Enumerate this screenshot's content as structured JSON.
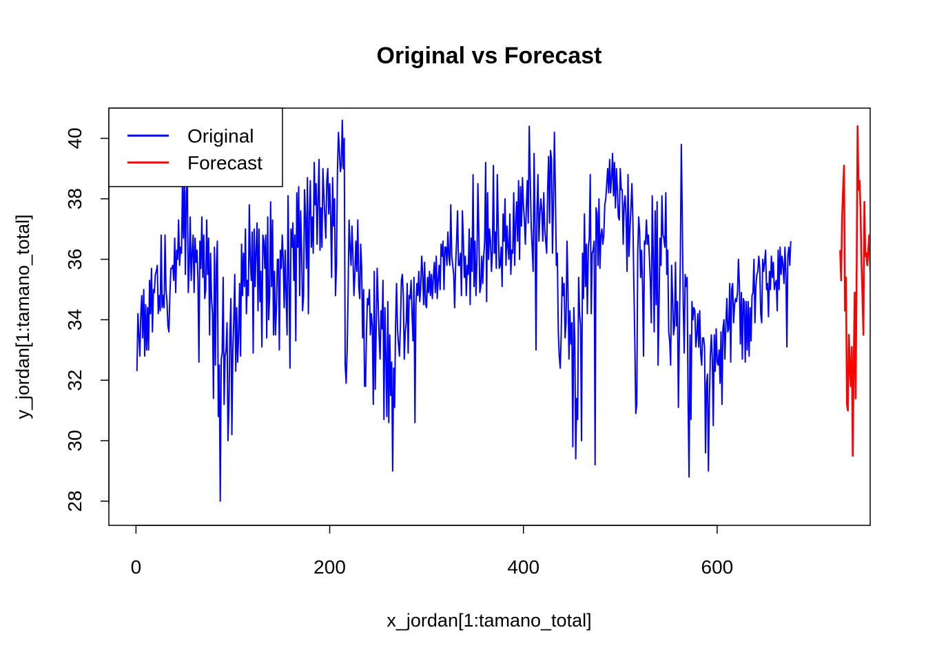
{
  "chart_data": {
    "type": "line",
    "title": "Original vs Forecast",
    "xlabel": "x_jordan[1:tamano_total]",
    "ylabel": "y_jordan[1:tamano_total]",
    "xlim": [
      -28,
      758
    ],
    "ylim": [
      27.2,
      41.0
    ],
    "x_ticks": [
      0,
      200,
      400,
      600
    ],
    "y_ticks": [
      28,
      30,
      32,
      34,
      36,
      38,
      40
    ],
    "x_tick_labels": [
      "0",
      "200",
      "400",
      "600"
    ],
    "y_tick_labels": [
      "28",
      "30",
      "32",
      "34",
      "36",
      "38",
      "40"
    ],
    "grid": false,
    "legend_position": "top-left",
    "series": [
      {
        "name": "Original",
        "color": "#0000ff",
        "x_start": 1,
        "values": [
          32.3,
          34.2,
          33.5,
          32.8,
          34.2,
          34.8,
          33.4,
          35.0,
          32.8,
          34.5,
          33.0,
          34.4,
          33.0,
          35.3,
          34.2,
          35.7,
          33.6,
          35.0,
          34.9,
          35.5,
          35.6,
          35.8,
          34.2,
          34.8,
          34.3,
          36.8,
          34.4,
          34.8,
          34.4,
          36.8,
          35.0,
          34.6,
          33.8,
          33.6,
          34.8,
          35.7,
          35.7,
          35.8,
          35.3,
          36.7,
          34.9,
          36.3,
          36.0,
          37.3,
          35.8,
          36.4,
          36.2,
          38.5,
          36.7,
          39.0,
          35.5,
          38.2,
          38.6,
          34.9,
          35.8,
          37.4,
          35.3,
          36.2,
          36.8,
          34.9,
          36.7,
          35.9,
          36.3,
          35.3,
          32.6,
          36.6,
          35.7,
          37.4,
          35.4,
          36.8,
          34.7,
          35.0,
          37.3,
          35.5,
          36.7,
          33.5,
          36.2,
          34.7,
          34.2,
          31.4,
          36.4,
          32.5,
          35.8,
          36.6,
          30.8,
          32.5,
          28.0,
          32.7,
          32.9,
          35.4,
          31.2,
          32.8,
          33.0,
          33.9,
          30.0,
          31.2,
          33.6,
          34.7,
          30.2,
          33.0,
          34.0,
          35.5,
          32.3,
          34.4,
          32.6,
          33.5,
          35.2,
          32.8,
          36.5,
          34.8,
          36.2,
          35.1,
          37.0,
          34.2,
          35.3,
          34.8,
          37.8,
          36.0,
          35.3,
          36.9,
          32.9,
          37.0,
          35.1,
          36.3,
          37.2,
          34.3,
          37.0,
          34.6,
          35.6,
          33.1,
          36.8,
          36.6,
          35.7,
          36.8,
          33.4,
          37.4,
          34.0,
          34.8,
          37.9,
          35.1,
          37.3,
          33.5,
          35.6,
          33.5,
          34.4,
          36.0,
          36.0,
          33.0,
          36.3,
          35.7,
          36.8,
          36.0,
          34.4,
          36.3,
          34.8,
          33.5,
          38.1,
          35.3,
          32.4,
          37.0,
          36.4,
          37.2,
          35.3,
          36.8,
          33.3,
          38.2,
          36.4,
          38.4,
          34.8,
          37.6,
          36.3,
          34.3,
          34.8,
          38.3,
          37.4,
          35.7,
          38.7,
          34.2,
          37.5,
          38.6,
          36.4,
          37.4,
          36.2,
          39.2,
          37.8,
          38.5,
          36.5,
          38.0,
          39.3,
          36.3,
          37.7,
          36.4,
          39.0,
          38.1,
          37.4,
          36.7,
          38.6,
          39.0,
          37.5,
          38.5,
          37.4,
          35.4,
          38.7,
          37.1,
          38.0,
          34.8,
          35.8,
          38.9,
          40.2,
          39.6,
          38.9,
          39.1,
          40.6,
          39.0,
          40.0,
          32.5,
          31.9,
          33.0,
          34.9,
          37.3,
          36.4,
          35.8,
          37.1,
          36.1,
          34.8,
          35.5,
          36.6,
          35.6,
          37.3,
          35.1,
          34.7,
          36.5,
          35.7,
          33.4,
          35.0,
          31.8,
          31.8,
          33.6,
          34.7,
          34.5,
          35.0,
          33.5,
          34.2,
          33.8,
          31.2,
          35.6,
          31.7,
          33.7,
          35.7,
          34.6,
          33.5,
          32.7,
          34.3,
          33.7,
          35.3,
          30.7,
          34.4,
          32.8,
          30.8,
          34.6,
          30.6,
          33.5,
          31.5,
          32.6,
          29.0,
          32.4,
          31.1,
          33.8,
          35.2,
          33.7,
          33.2,
          32.8,
          33.8,
          35.3,
          35.5,
          34.8,
          32.7,
          33.6,
          33.9,
          35.2,
          32.9,
          34.8,
          34.7,
          35.3,
          34.2,
          33.3,
          35.4,
          30.6,
          34.5,
          35.2,
          34.8,
          35.6,
          34.6,
          35.1,
          36.1,
          35.5,
          34.5,
          35.9,
          34.5,
          34.4,
          35.4,
          34.9,
          35.6,
          34.8,
          35.5,
          34.7,
          35.4,
          35.9,
          34.9,
          36.1,
          34.7,
          35.3,
          35.8,
          35.0,
          36.5,
          36.1,
          36.6,
          35.0,
          36.4,
          36.4,
          35.8,
          36.9,
          36.1,
          35.8,
          37.8,
          36.1,
          35.8,
          35.5,
          34.4,
          35.8,
          36.6,
          37.6,
          35.8,
          35.8,
          36.2,
          34.8,
          37.6,
          36.6,
          35.4,
          36.1,
          34.8,
          35.8,
          35.5,
          37.0,
          34.5,
          36.7,
          35.6,
          38.8,
          35.1,
          36.6,
          34.8,
          36.0,
          38.5,
          36.8,
          34.9,
          35.1,
          36.1,
          35.2,
          36.1,
          36.6,
          39.2,
          34.6,
          38.2,
          36.0,
          37.0,
          36.6,
          35.6,
          36.3,
          39.1,
          36.2,
          36.9,
          35.7,
          38.8,
          37.2,
          35.7,
          35.8,
          36.4,
          35.1,
          37.5,
          36.6,
          38.0,
          35.8,
          37.1,
          36.4,
          36.0,
          37.5,
          35.5,
          36.3,
          36.2,
          38.2,
          35.8,
          37.2,
          37.9,
          36.6,
          38.6,
          36.0,
          38.4,
          37.1,
          38.7,
          37.8,
          37.3,
          36.5,
          37.7,
          38.6,
          37.2,
          40.4,
          38.7,
          37.1,
          36.4,
          35.6,
          39.5,
          37.1,
          33.0,
          37.6,
          38.8,
          36.6,
          37.5,
          38.0,
          37.6,
          36.6,
          38.2,
          37.0,
          36.6,
          36.2,
          38.3,
          39.4,
          37.2,
          39.6,
          39.3,
          36.2,
          37.9,
          40.2,
          38.2,
          35.8,
          36.2,
          33.6,
          32.8,
          32.4,
          33.5,
          35.4,
          34.8,
          35.2,
          33.4,
          33.9,
          36.6,
          35.0,
          32.7,
          34.3,
          33.2,
          33.9,
          29.8,
          34.4,
          33.4,
          29.4,
          31.4,
          30.7,
          35.4,
          34.2,
          33.8,
          30.0,
          36.2,
          34.7,
          37.5,
          35.1,
          36.5,
          34.2,
          36.4,
          36.7,
          38.8,
          34.2,
          36.2,
          36.3,
          36.6,
          29.2,
          37.7,
          37.5,
          35.8,
          38.0,
          35.7,
          36.8,
          37.0,
          36.5,
          36.8,
          37.8,
          38.0,
          38.5,
          39.0,
          38.2,
          39.3,
          38.2,
          38.7,
          39.5,
          38.1,
          39.2,
          37.7,
          39.0,
          38.3,
          37.4,
          37.3,
          39.0,
          38.3,
          38.3,
          36.5,
          37.8,
          38.1,
          37.4,
          35.6,
          38.8,
          36.1,
          37.0,
          37.7,
          38.5,
          37.3,
          35.2,
          33.3,
          30.9,
          31.2,
          36.2,
          37.4,
          36.9,
          35.4,
          36.3,
          35.1,
          32.8,
          36.6,
          36.5,
          37.3,
          36.5,
          36.8,
          36.1,
          35.3,
          33.9,
          38.1,
          36.1,
          33.6,
          37.6,
          34.5,
          37.9,
          32.5,
          34.4,
          36.7,
          35.8,
          38.1,
          36.8,
          36.7,
          36.4,
          38.2,
          35.5,
          36.3,
          33.6,
          33.3,
          32.5,
          35.8,
          34.7,
          33.5,
          33.8,
          35.9,
          33.8,
          34.6,
          31.1,
          33.6,
          36.0,
          39.8,
          37.4,
          34.5,
          32.9,
          35.5,
          35.1,
          35.4,
          31.3,
          28.8,
          33.5,
          30.7,
          34.6,
          34.0,
          34.4,
          34.3,
          33.1,
          33.5,
          34.2,
          33.1,
          34.3,
          32.9,
          32.5,
          33.4,
          33.4,
          33.1,
          29.6,
          31.9,
          32.2,
          29.0,
          31.4,
          32.8,
          33.5,
          32.7,
          30.5,
          33.5,
          32.3,
          33.7,
          32.6,
          32.5,
          33.0,
          31.9,
          33.6,
          31.2,
          33.7,
          34.0,
          32.7,
          33.8,
          34.7,
          33.6,
          33.7,
          35.2,
          32.6,
          35.0,
          35.2,
          33.9,
          34.5,
          34.7,
          34.6,
          34.9,
          36.0,
          35.1,
          33.2,
          34.9,
          32.7,
          34.7,
          34.6,
          32.6,
          34.6,
          33.0,
          34.6,
          32.8,
          34.4,
          33.3,
          34.8,
          34.9,
          36.0,
          33.9,
          35.1,
          35.5,
          35.6,
          36.1,
          35.7,
          34.2,
          33.9,
          36.0,
          35.6,
          35.9,
          36.3,
          35.0,
          35.2,
          34.1,
          35.6,
          35.0,
          36.1,
          35.4,
          35.9,
          35.0,
          35.2,
          35.3,
          34.3,
          36.3,
          35.0,
          36.4,
          35.5,
          36.1,
          35.8,
          35.2,
          36.4,
          35.5,
          33.1,
          36.1,
          36.4,
          35.8,
          36.6
        ]
      },
      {
        "name": "Forecast",
        "color": "#ff0000",
        "x_start": 727,
        "values": [
          36.3,
          35.3,
          37.4,
          38.3,
          39.1,
          34.3,
          35.4,
          31.2,
          31.0,
          33.5,
          32.4,
          31.8,
          33.1,
          29.5,
          32.5,
          34.9,
          31.4,
          35.5,
          40.4,
          38.3,
          38.6,
          37.7,
          35.9,
          34.8,
          33.5,
          37.9,
          36.1,
          36.2,
          35.8,
          36.3,
          36.8,
          35.6,
          36.8,
          34.9,
          35.8,
          33.1
        ]
      }
    ]
  }
}
